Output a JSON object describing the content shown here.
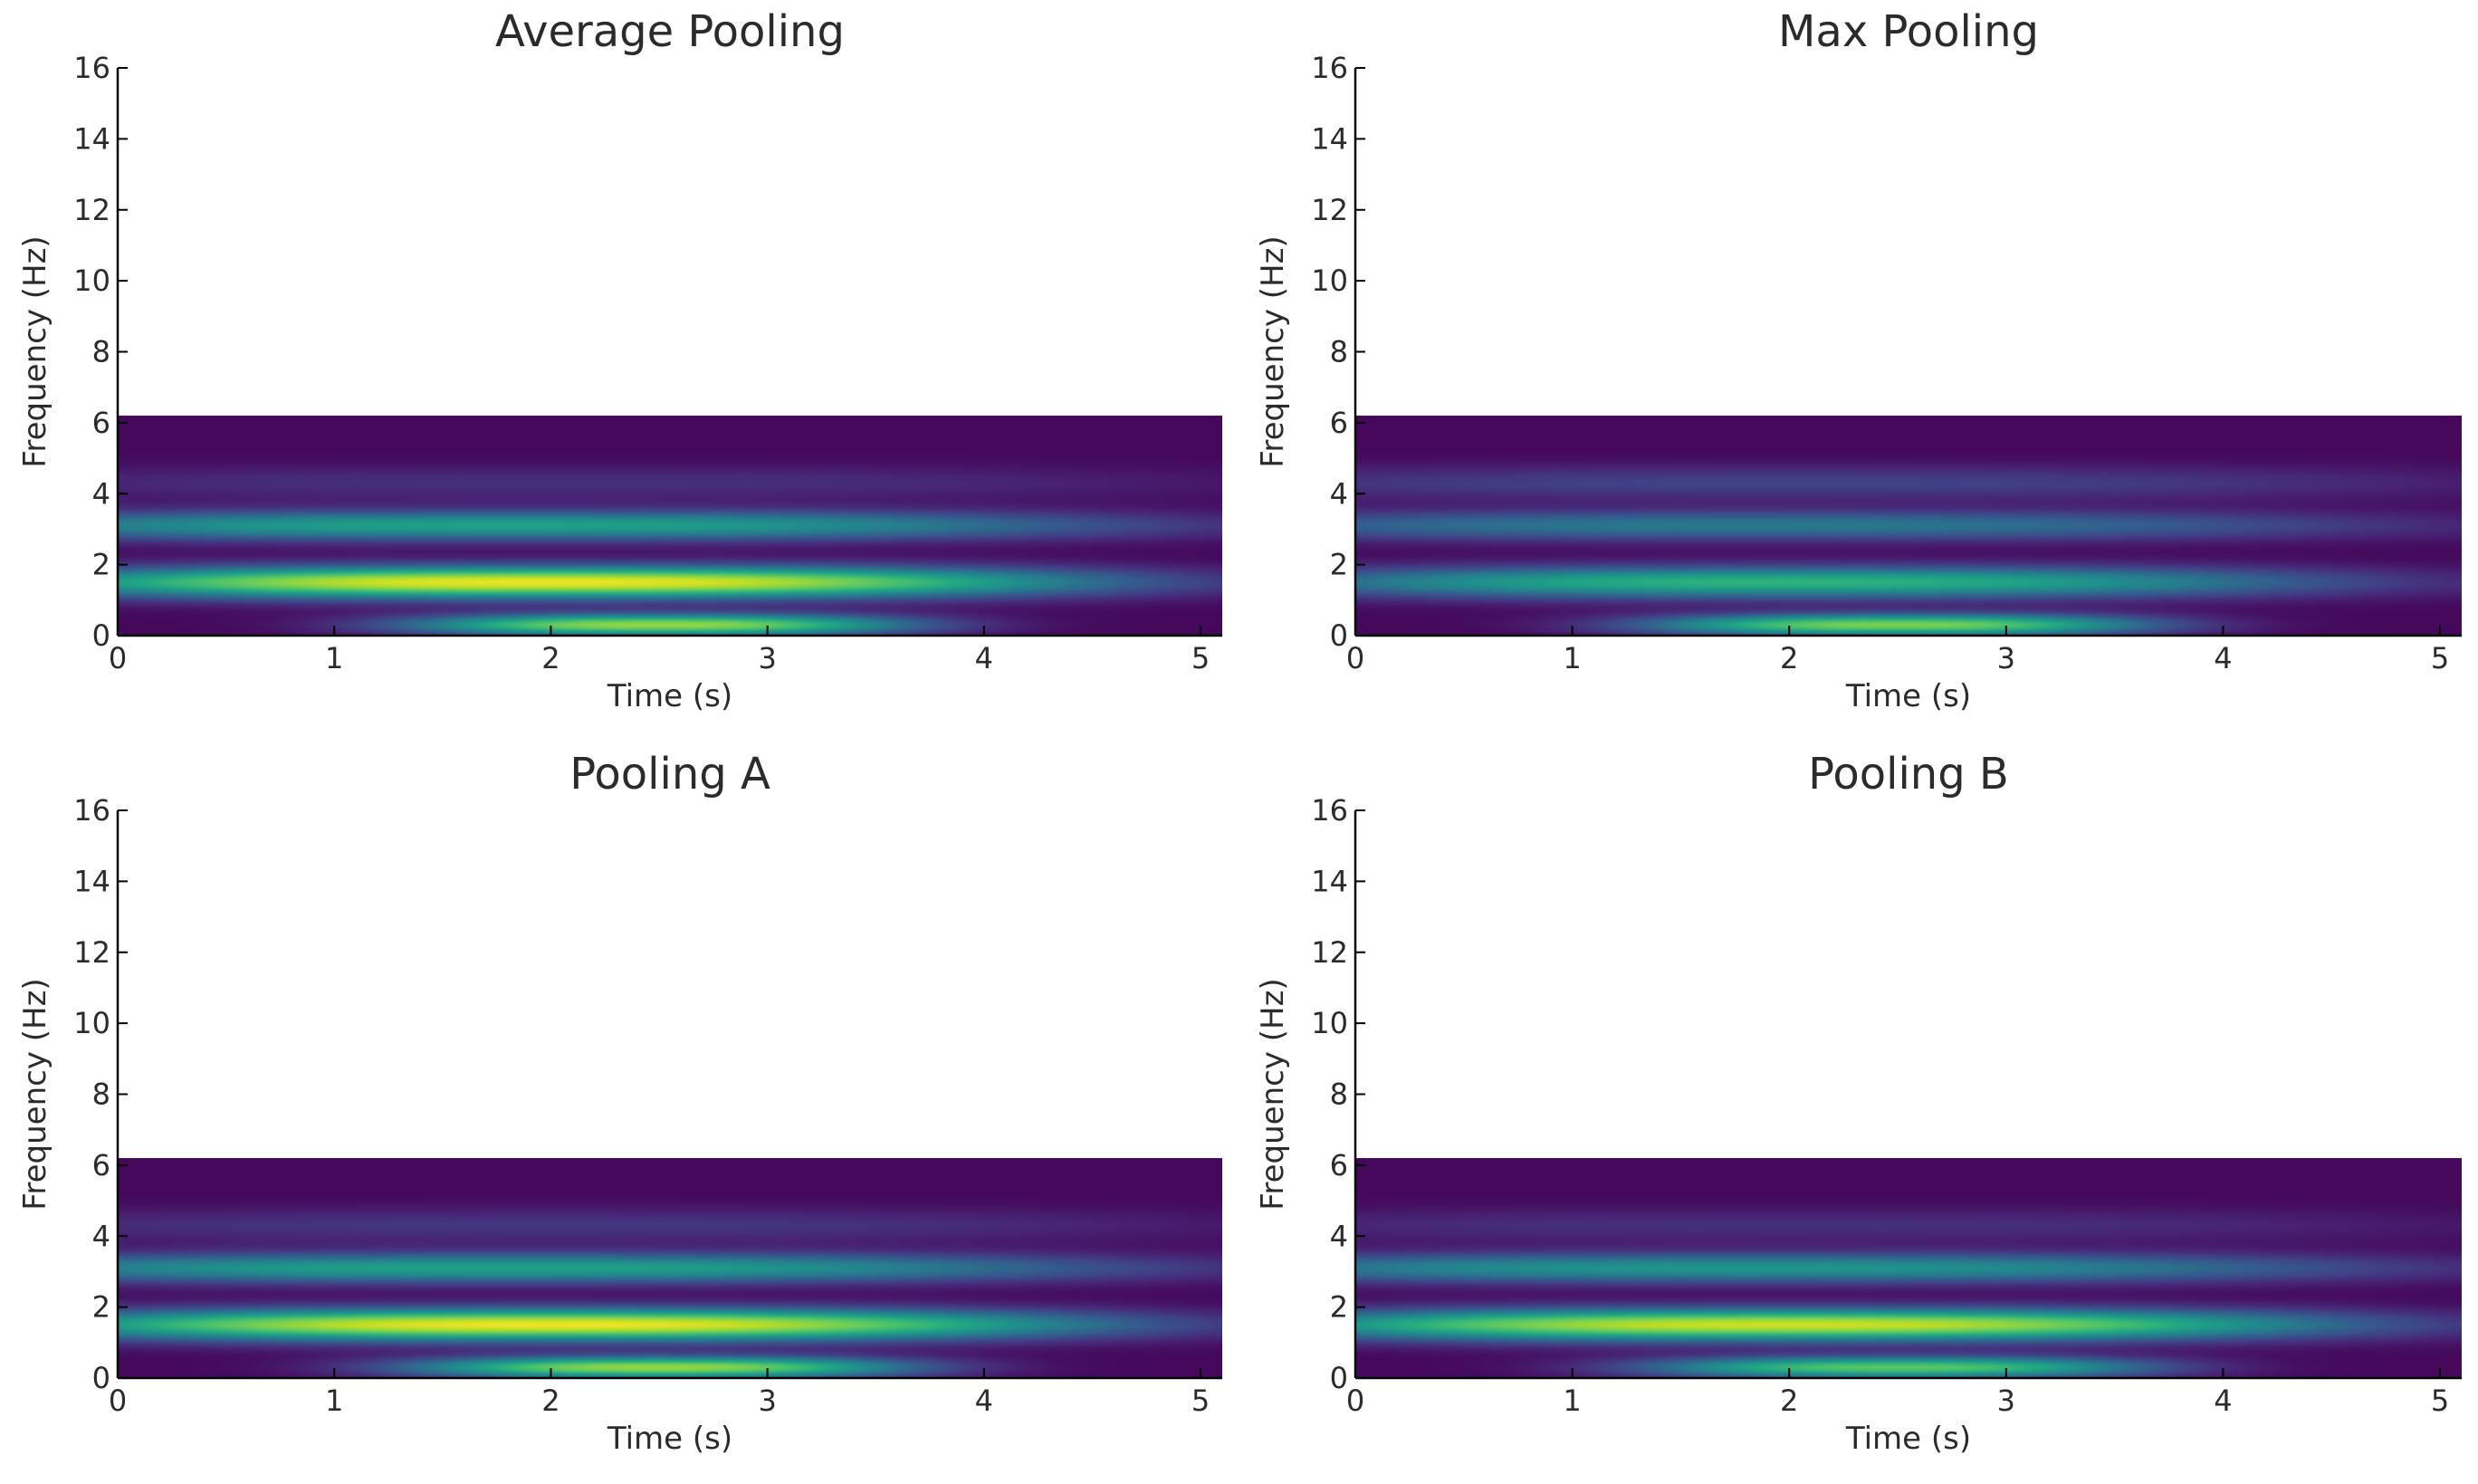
{
  "chart_data": [
    {
      "type": "heatmap",
      "title": "Average Pooling",
      "xlabel": "Time (s)",
      "ylabel": "Frequency (Hz)",
      "xlim": [
        0,
        5.1
      ],
      "ylim": [
        0,
        16
      ],
      "xticks": [
        0,
        1,
        2,
        3,
        4,
        5
      ],
      "yticks": [
        0,
        2,
        4,
        6,
        8,
        10,
        12,
        14,
        16
      ],
      "data_extent": {
        "x": [
          0,
          5.1
        ],
        "y": [
          0,
          6.2
        ]
      },
      "colormap": "viridis",
      "bands": [
        {
          "freq": 0.3,
          "time_center": 2.5,
          "time_spread": 0.9,
          "intensity": 0.82,
          "freq_width": 0.22
        },
        {
          "freq": 1.5,
          "time_center": 2.0,
          "time_spread": 1.9,
          "intensity": 0.95,
          "freq_width": 0.32
        },
        {
          "freq": 3.1,
          "time_center": 1.8,
          "time_spread": 2.2,
          "intensity": 0.55,
          "freq_width": 0.3
        },
        {
          "freq": 4.3,
          "time_center": 2.0,
          "time_spread": 2.4,
          "intensity": 0.12,
          "freq_width": 0.35
        }
      ]
    },
    {
      "type": "heatmap",
      "title": "Max Pooling",
      "xlabel": "Time (s)",
      "ylabel": "Frequency (Hz)",
      "xlim": [
        0,
        5.1
      ],
      "ylim": [
        0,
        16
      ],
      "xticks": [
        0,
        1,
        2,
        3,
        4,
        5
      ],
      "yticks": [
        0,
        2,
        4,
        6,
        8,
        10,
        12,
        14,
        16
      ],
      "data_extent": {
        "x": [
          0,
          5.1
        ],
        "y": [
          0,
          6.2
        ]
      },
      "colormap": "viridis",
      "bands": [
        {
          "freq": 0.3,
          "time_center": 2.5,
          "time_spread": 0.9,
          "intensity": 0.78,
          "freq_width": 0.22
        },
        {
          "freq": 1.5,
          "time_center": 2.0,
          "time_spread": 1.9,
          "intensity": 0.62,
          "freq_width": 0.32
        },
        {
          "freq": 3.1,
          "time_center": 1.8,
          "time_spread": 2.2,
          "intensity": 0.38,
          "freq_width": 0.3
        },
        {
          "freq": 4.3,
          "time_center": 2.0,
          "time_spread": 2.4,
          "intensity": 0.18,
          "freq_width": 0.35
        }
      ]
    },
    {
      "type": "heatmap",
      "title": "Pooling A",
      "xlabel": "Time (s)",
      "ylabel": "Frequency (Hz)",
      "xlim": [
        0,
        5.1
      ],
      "ylim": [
        0,
        16
      ],
      "xticks": [
        0,
        1,
        2,
        3,
        4,
        5
      ],
      "yticks": [
        0,
        2,
        4,
        6,
        8,
        10,
        12,
        14,
        16
      ],
      "data_extent": {
        "x": [
          0,
          5.1
        ],
        "y": [
          0,
          6.2
        ]
      },
      "colormap": "viridis",
      "bands": [
        {
          "freq": 0.3,
          "time_center": 2.5,
          "time_spread": 0.9,
          "intensity": 0.82,
          "freq_width": 0.22
        },
        {
          "freq": 1.5,
          "time_center": 2.0,
          "time_spread": 1.9,
          "intensity": 0.95,
          "freq_width": 0.32
        },
        {
          "freq": 3.1,
          "time_center": 1.8,
          "time_spread": 2.2,
          "intensity": 0.55,
          "freq_width": 0.3
        },
        {
          "freq": 4.3,
          "time_center": 2.0,
          "time_spread": 2.4,
          "intensity": 0.14,
          "freq_width": 0.35
        }
      ]
    },
    {
      "type": "heatmap",
      "title": "Pooling B",
      "xlabel": "Time (s)",
      "ylabel": "Frequency (Hz)",
      "xlim": [
        0,
        5.1
      ],
      "ylim": [
        0,
        16
      ],
      "xticks": [
        0,
        1,
        2,
        3,
        4,
        5
      ],
      "yticks": [
        0,
        2,
        4,
        6,
        8,
        10,
        12,
        14,
        16
      ],
      "data_extent": {
        "x": [
          0,
          5.1
        ],
        "y": [
          0,
          6.2
        ]
      },
      "colormap": "viridis",
      "bands": [
        {
          "freq": 0.3,
          "time_center": 2.5,
          "time_spread": 0.9,
          "intensity": 0.72,
          "freq_width": 0.22
        },
        {
          "freq": 1.5,
          "time_center": 2.0,
          "time_spread": 1.9,
          "intensity": 0.9,
          "freq_width": 0.32
        },
        {
          "freq": 3.1,
          "time_center": 1.8,
          "time_spread": 2.2,
          "intensity": 0.5,
          "freq_width": 0.3
        },
        {
          "freq": 4.3,
          "time_center": 2.0,
          "time_spread": 2.4,
          "intensity": 0.12,
          "freq_width": 0.35
        }
      ]
    }
  ]
}
